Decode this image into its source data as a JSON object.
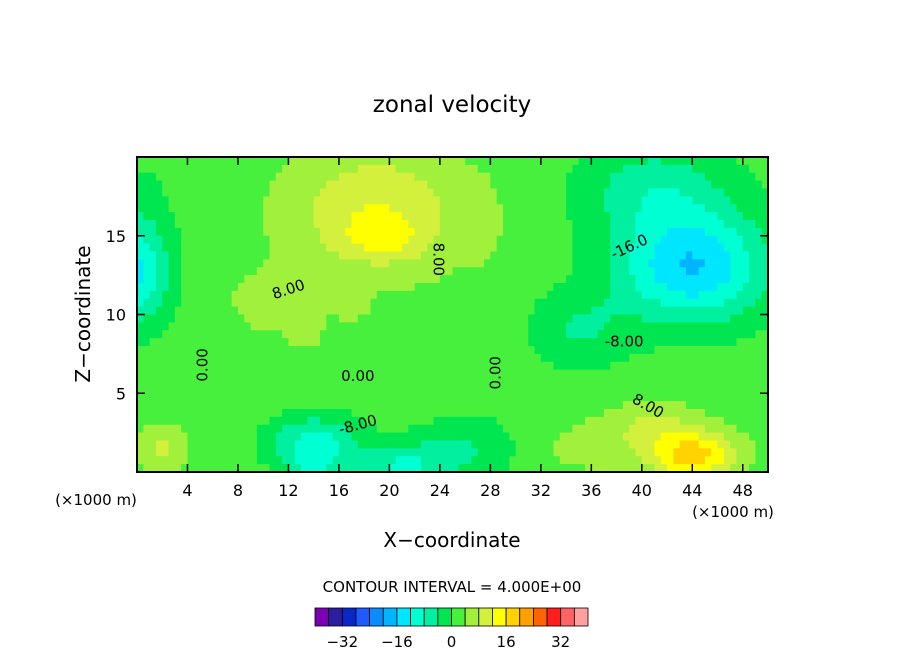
{
  "chart_data": {
    "type": "heatmap",
    "title": "zonal velocity",
    "xlabel": "X−coordinate",
    "ylabel": "Z−coordinate",
    "x_unit_left": "(×1000 m)",
    "x_unit_right": "(×1000 m)",
    "xlim": [
      0,
      50
    ],
    "ylim": [
      0,
      20
    ],
    "x_ticks": [
      4,
      8,
      12,
      16,
      20,
      24,
      28,
      32,
      36,
      40,
      44,
      48
    ],
    "y_ticks": [
      5,
      10,
      15
    ],
    "contour_interval_text": "CONTOUR INTERVAL = 4.000E+00",
    "colorbar": {
      "levels": [
        -36,
        -32,
        -28,
        -24,
        -20,
        -16,
        -12,
        -8,
        -4,
        0,
        4,
        8,
        12,
        16,
        20,
        24,
        28,
        32,
        36
      ],
      "colors": [
        "#7a00b4",
        "#2d1ea0",
        "#0a28c8",
        "#1e5aff",
        "#0a8cff",
        "#00b4ff",
        "#00e6ff",
        "#00ffd2",
        "#00f0a0",
        "#00e650",
        "#46f03c",
        "#a0f03c",
        "#d2f03c",
        "#ffff00",
        "#ffd200",
        "#ffa000",
        "#ff6400",
        "#ff1e1e",
        "#ff6464",
        "#ffa0a0"
      ],
      "tick_values": [
        -32,
        -16,
        0,
        16,
        32
      ],
      "tick_labels": [
        "−32",
        "−16",
        "0",
        "16",
        "32"
      ]
    },
    "contour_labels": [
      {
        "text": "8.00",
        "x": 23.9,
        "y": 13.5,
        "rotation": 90
      },
      {
        "text": "8.00",
        "x": 12,
        "y": 11.6,
        "rotation": -18
      },
      {
        "text": "-16.0",
        "x": 39,
        "y": 14.3,
        "rotation": -25
      },
      {
        "text": "0.00",
        "x": 5.2,
        "y": 6.8,
        "rotation": -90
      },
      {
        "text": "0.00",
        "x": 17.5,
        "y": 6.1,
        "rotation": 0
      },
      {
        "text": "0.00",
        "x": 28.4,
        "y": 6.3,
        "rotation": -90
      },
      {
        "text": "-8.00",
        "x": 38.6,
        "y": 8.3,
        "rotation": 0
      },
      {
        "text": "-8.00",
        "x": 17.5,
        "y": 3.0,
        "rotation": -15
      },
      {
        "text": "8.00",
        "x": 40.5,
        "y": 4.2,
        "rotation": 30
      }
    ],
    "field_sources": [
      {
        "x": 19,
        "y": 16.5,
        "sx": 7,
        "sy": 4,
        "v": 10
      },
      {
        "x": 19.5,
        "y": 14.8,
        "sx": 3,
        "sy": 1.2,
        "v": 5
      },
      {
        "x": 17,
        "y": 10.8,
        "sx": 1.2,
        "sy": 1.2,
        "v": 4
      },
      {
        "x": 13.5,
        "y": 8.8,
        "sx": 1.2,
        "sy": 1,
        "v": 3
      },
      {
        "x": 11,
        "y": 10.5,
        "sx": 4,
        "sy": 2.5,
        "v": 3
      },
      {
        "x": 44,
        "y": 13,
        "sx": 6,
        "sy": 3.5,
        "v": -18
      },
      {
        "x": 41,
        "y": 18,
        "sx": 6,
        "sy": 3,
        "v": -8
      },
      {
        "x": 0,
        "y": 12.5,
        "sx": 2.5,
        "sy": 3,
        "v": -12
      },
      {
        "x": 0,
        "y": 15,
        "sx": 3,
        "sy": 5,
        "v": -4
      },
      {
        "x": 14,
        "y": 1.8,
        "sx": 3.5,
        "sy": 1.8,
        "v": -12
      },
      {
        "x": 14,
        "y": 0.2,
        "sx": 2,
        "sy": 1,
        "v": -6
      },
      {
        "x": 21,
        "y": 0.3,
        "sx": 3.5,
        "sy": 1.5,
        "v": -10
      },
      {
        "x": 26,
        "y": 1.5,
        "sx": 4,
        "sy": 2,
        "v": -6
      },
      {
        "x": 35,
        "y": 9,
        "sx": 4,
        "sy": 2.5,
        "v": -6
      },
      {
        "x": 44,
        "y": 1,
        "sx": 3.5,
        "sy": 1.5,
        "v": 16
      },
      {
        "x": 41,
        "y": 3,
        "sx": 4,
        "sy": 1.5,
        "v": 6
      },
      {
        "x": 2,
        "y": 1.5,
        "sx": 1.8,
        "sy": 1.5,
        "v": 7
      },
      {
        "x": 36,
        "y": 1.5,
        "sx": 4,
        "sy": 1.5,
        "v": 4
      },
      {
        "x": 7,
        "y": 15,
        "sx": 2,
        "sy": 5,
        "v": 1
      },
      {
        "x": 28,
        "y": 15,
        "sx": 2,
        "sy": 5,
        "v": 1
      }
    ],
    "base_value": 2,
    "grid": false
  }
}
